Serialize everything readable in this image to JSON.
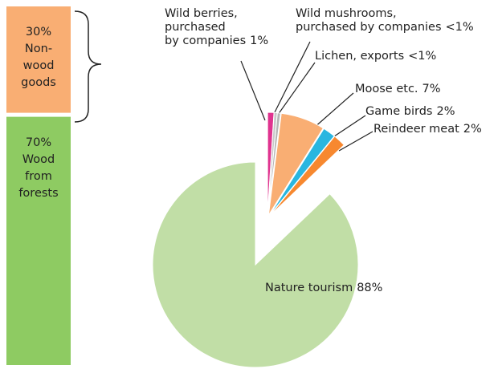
{
  "chart_data": [
    {
      "type": "stacked_bar",
      "series": [
        {
          "name": "Non-wood goods",
          "color": "#f9ae73",
          "values": [
            30
          ],
          "value_labels": [
            "30%"
          ]
        },
        {
          "name": "Wood from forests",
          "color": "#8ecb62",
          "values": [
            70
          ],
          "value_labels": [
            "70%"
          ]
        }
      ]
    },
    {
      "type": "pie",
      "categories": [
        "Wild berries,\npurchased\nby companies",
        "Wild mushrooms,\npurchased by companies",
        "Lichen, exports",
        "Moose etc.",
        "Game birds",
        "Reindeer meat",
        "Nature tourism"
      ],
      "values": [
        1,
        0.5,
        0.5,
        7,
        2,
        2,
        88
      ],
      "value_labels": [
        "1%",
        "<1%",
        "<1%",
        "7%",
        "2%",
        "2%",
        "88%"
      ],
      "colors": [
        "#e0338f",
        "#c9c9c9",
        "#b5b5b5",
        "#f9ae73",
        "#29b6e0",
        "#f7882f",
        "#c1dea6"
      ]
    }
  ]
}
